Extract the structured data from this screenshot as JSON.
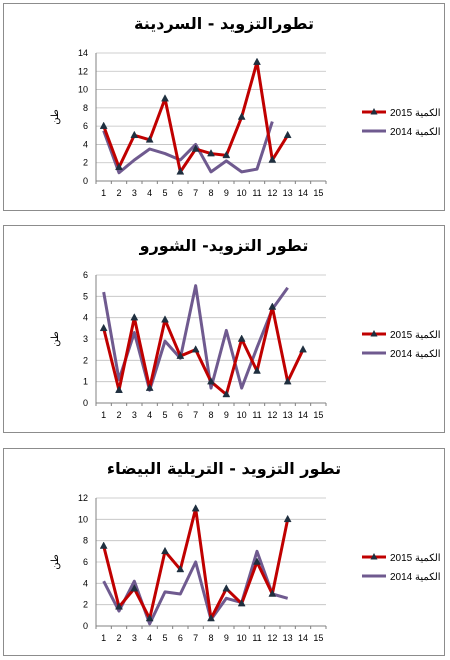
{
  "chart_data": [
    {
      "type": "line",
      "title": "تطورالتزويد - السردينة",
      "ylabel": "طن",
      "ylim": [
        0,
        14
      ],
      "yticks": [
        0,
        2,
        4,
        6,
        8,
        10,
        12,
        14
      ],
      "x": [
        1,
        2,
        3,
        4,
        5,
        6,
        7,
        8,
        9,
        10,
        11,
        12,
        13,
        14,
        15
      ],
      "grid": "horizontal",
      "legend": "right",
      "series": [
        {
          "name": "الكمية 2015",
          "color": "#c00000",
          "marker": "triangle",
          "values": [
            6,
            1.5,
            5,
            4.5,
            9,
            1,
            3.5,
            3,
            2.8,
            7,
            13,
            2.3,
            5,
            null,
            null
          ]
        },
        {
          "name": "الكمية 2014",
          "color": "#6f5a8f",
          "marker": "none",
          "values": [
            5.5,
            0.9,
            2.3,
            3.5,
            3,
            2.3,
            4,
            1,
            2.2,
            1,
            1.3,
            6.5,
            null,
            null,
            null
          ]
        }
      ]
    },
    {
      "type": "line",
      "title": "تطور التزويد- الشورو",
      "ylabel": "طن",
      "ylim": [
        0,
        6
      ],
      "yticks": [
        0,
        1,
        2,
        3,
        4,
        5,
        6
      ],
      "x": [
        1,
        2,
        3,
        4,
        5,
        6,
        7,
        8,
        9,
        10,
        11,
        12,
        13,
        14,
        15
      ],
      "grid": "horizontal",
      "legend": "right",
      "series": [
        {
          "name": "الكمية 2015",
          "color": "#c00000",
          "marker": "triangle",
          "values": [
            3.5,
            0.6,
            4,
            0.7,
            3.9,
            2.2,
            2.5,
            1,
            0.4,
            3,
            1.5,
            4.5,
            1,
            2.5,
            null
          ]
        },
        {
          "name": "الكمية 2014",
          "color": "#6f5a8f",
          "marker": "none",
          "values": [
            5.2,
            1.1,
            3.3,
            0.6,
            2.9,
            2.1,
            5.5,
            0.7,
            3.4,
            0.7,
            2.6,
            4.4,
            5.4,
            null,
            null
          ]
        }
      ]
    },
    {
      "type": "line",
      "title": "تطور التزويد - التريلية البيضاء",
      "ylabel": "طن",
      "ylim": [
        0,
        12
      ],
      "yticks": [
        0,
        2,
        4,
        6,
        8,
        10,
        12
      ],
      "x": [
        1,
        2,
        3,
        4,
        5,
        6,
        7,
        8,
        9,
        10,
        11,
        12,
        13,
        14,
        15
      ],
      "grid": "horizontal",
      "legend": "right",
      "series": [
        {
          "name": "الكمية 2015",
          "color": "#c00000",
          "marker": "triangle",
          "values": [
            7.5,
            1.8,
            3.5,
            0.7,
            7,
            5.3,
            11,
            0.7,
            3.5,
            2.1,
            6,
            3,
            10,
            null,
            null
          ]
        },
        {
          "name": "الكمية 2014",
          "color": "#6f5a8f",
          "marker": "none",
          "values": [
            4.2,
            1.4,
            4.2,
            0.2,
            3.2,
            3,
            6,
            0.6,
            2.6,
            2.2,
            7,
            3,
            2.6,
            null,
            null
          ]
        }
      ]
    }
  ]
}
